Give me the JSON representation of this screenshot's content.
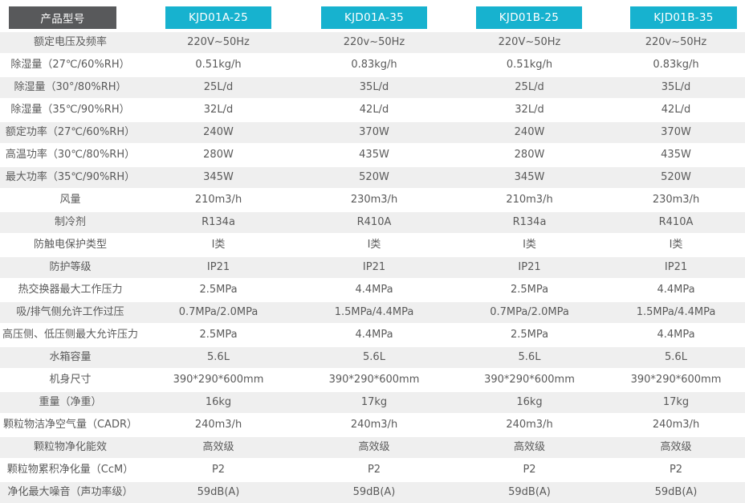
{
  "table": {
    "corner_label": "产品型号",
    "models": [
      "KJD01A-25",
      "KJD01A-35",
      "KJD01B-25",
      "KJD01B-35"
    ],
    "rows": [
      {
        "label": "额定电压及频率",
        "values": [
          "220V~50Hz",
          "220v~50Hz",
          "220V~50Hz",
          "220v~50Hz"
        ]
      },
      {
        "label": "除湿量（27℃/60%RH）",
        "values": [
          "0.51kg/h",
          "0.83kg/h",
          "0.51kg/h",
          "0.83kg/h"
        ]
      },
      {
        "label": "除湿量（30°/80%RH）",
        "values": [
          "25L/d",
          "35L/d",
          "25L/d",
          "35L/d"
        ]
      },
      {
        "label": "除湿量（35℃/90%RH）",
        "values": [
          "32L/d",
          "42L/d",
          "32L/d",
          "42L/d"
        ]
      },
      {
        "label": "额定功率（27℃/60%RH）",
        "values": [
          "240W",
          "370W",
          "240W",
          "370W"
        ]
      },
      {
        "label": "高温功率（30℃/80%RH）",
        "values": [
          "280W",
          "435W",
          "280W",
          "435W"
        ]
      },
      {
        "label": "最大功率（35℃/90%RH）",
        "values": [
          "345W",
          "520W",
          "345W",
          "520W"
        ]
      },
      {
        "label": "风量",
        "values": [
          "210m3/h",
          "230m3/h",
          "210m3/h",
          "230m3/h"
        ]
      },
      {
        "label": "制冷剂",
        "values": [
          "R134a",
          "R410A",
          "R134a",
          "R410A"
        ]
      },
      {
        "label": "防触电保护类型",
        "values": [
          "I类",
          "I类",
          "I类",
          "I类"
        ]
      },
      {
        "label": "防护等级",
        "values": [
          "IP21",
          "IP21",
          "IP21",
          "IP21"
        ]
      },
      {
        "label": "热交换器最大工作压力",
        "values": [
          "2.5MPa",
          "4.4MPa",
          "2.5MPa",
          "4.4MPa"
        ]
      },
      {
        "label": "吸/排气侧允许工作过压",
        "values": [
          "0.7MPa/2.0MPa",
          "1.5MPa/4.4MPa",
          "0.7MPa/2.0MPa",
          "1.5MPa/4.4MPa"
        ]
      },
      {
        "label": "高压侧、低压侧最大允许压力",
        "values": [
          "2.5MPa",
          "4.4MPa",
          "2.5MPa",
          "4.4MPa"
        ]
      },
      {
        "label": "水箱容量",
        "values": [
          "5.6L",
          "5.6L",
          "5.6L",
          "5.6L"
        ]
      },
      {
        "label": "机身尺寸",
        "values": [
          "390*290*600mm",
          "390*290*600mm",
          "390*290*600mm",
          "390*290*600mm"
        ]
      },
      {
        "label": "重量（净重）",
        "values": [
          "16kg",
          "17kg",
          "16kg",
          "17kg"
        ]
      },
      {
        "label": "颗粒物洁净空气量（CADR）",
        "values": [
          "240m3/h",
          "240m3/h",
          "240m3/h",
          "240m3/h"
        ]
      },
      {
        "label": "颗粒物净化能效",
        "values": [
          "高效级",
          "高效级",
          "高效级",
          "高效级"
        ]
      },
      {
        "label": "颗粒物累积净化量（CcM）",
        "values": [
          "P2",
          "P2",
          "P2",
          "P2"
        ]
      },
      {
        "label": "净化最大噪音（声功率级）",
        "values": [
          "59dB(A)",
          "59dB(A)",
          "59dB(A)",
          "59dB(A)"
        ]
      }
    ]
  },
  "colors": {
    "accent": "#17b2cf",
    "corner_bg": "#58595b",
    "stripe_bg": "#efefef",
    "text": "#5a5a5a"
  }
}
